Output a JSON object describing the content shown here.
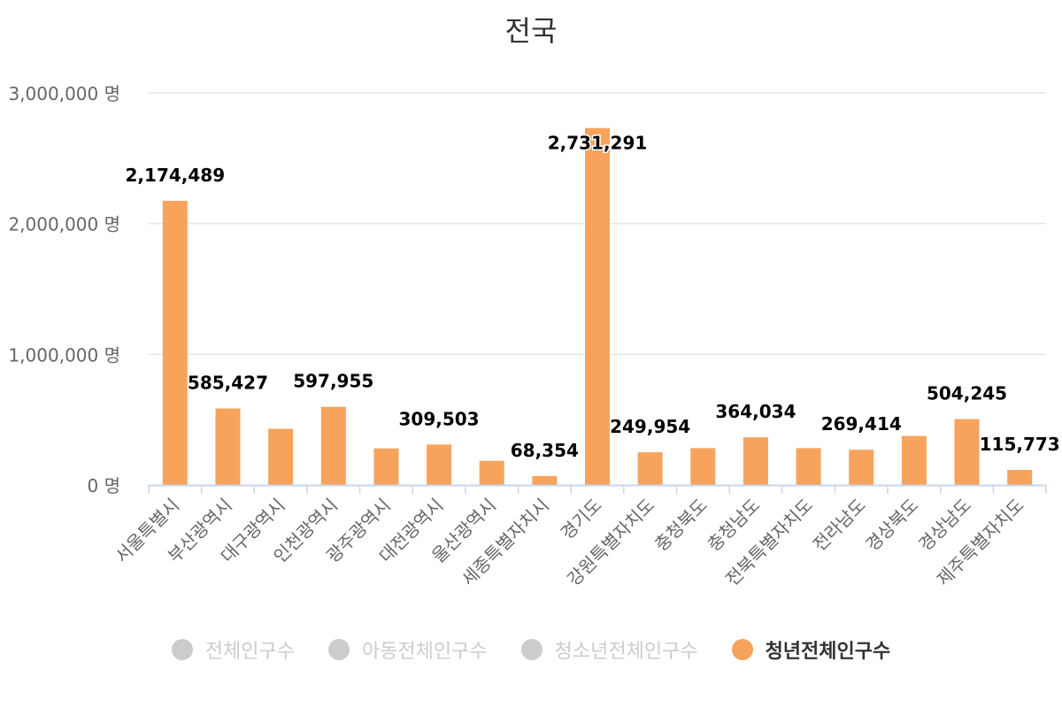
{
  "chart_data": {
    "type": "bar",
    "title": "전국",
    "xlabel": "",
    "ylabel": "",
    "ylim": [
      0,
      3000000
    ],
    "yticks": [
      {
        "value": 0,
        "label": "0 명"
      },
      {
        "value": 1000000,
        "label": "1,000,000 명"
      },
      {
        "value": 2000000,
        "label": "2,000,000 명"
      },
      {
        "value": 3000000,
        "label": "3,000,000 명"
      }
    ],
    "grid": true,
    "categories": [
      "서울특별시",
      "부산광역시",
      "대구광역시",
      "인천광역시",
      "광주광역시",
      "대전광역시",
      "울산광역시",
      "세종특별자치시",
      "경기도",
      "강원특별자치도",
      "충청북도",
      "충청남도",
      "전북특별자치도",
      "전라남도",
      "경상북도",
      "경상남도",
      "제주특별자치도"
    ],
    "series": [
      {
        "name": "청년전체인구수",
        "color": "#f7a35c",
        "values": [
          2174489,
          585427,
          430000,
          597955,
          280000,
          309503,
          185000,
          68354,
          2731291,
          249954,
          282000,
          364034,
          282000,
          269414,
          375000,
          504245,
          115773
        ],
        "labels": [
          "2,174,489",
          "585,427",
          "",
          "597,955",
          "",
          "309,503",
          "",
          "68,354",
          "2,731,291",
          "249,954",
          "",
          "364,034",
          "",
          "269,414",
          "",
          "504,245",
          "115,773"
        ]
      }
    ],
    "legend": [
      {
        "name": "전체인구수",
        "active": false,
        "color": "#cccccc"
      },
      {
        "name": "아동전체인구수",
        "active": false,
        "color": "#cccccc"
      },
      {
        "name": "청소년전체인구수",
        "active": false,
        "color": "#cccccc"
      },
      {
        "name": "청년전체인구수",
        "active": true,
        "color": "#f7a35c"
      }
    ],
    "legend_position": "bottom"
  }
}
